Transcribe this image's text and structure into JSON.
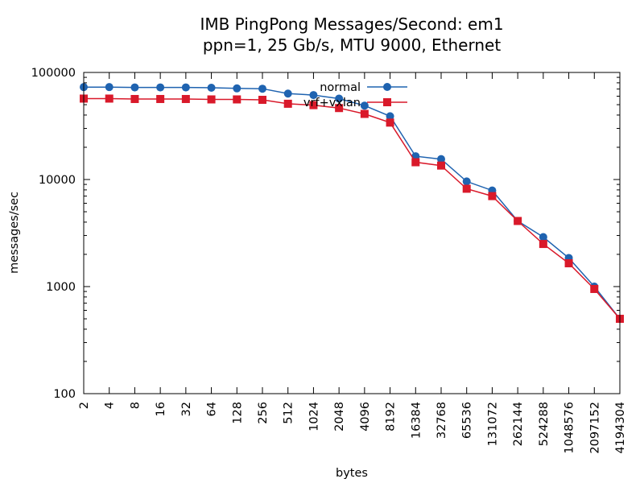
{
  "chart_data": {
    "type": "line",
    "title": "IMB PingPong Messages/Second: em1",
    "subtitle": "ppn=1, 25 Gb/s, MTU 9000, Ethernet",
    "xlabel": "bytes",
    "ylabel": "messages/sec",
    "xscale": "log2",
    "yscale": "log10",
    "xlim": [
      2,
      4194304
    ],
    "ylim": [
      100,
      100000
    ],
    "grid": false,
    "legend_position": "top-right",
    "x": [
      2,
      4,
      8,
      16,
      32,
      64,
      128,
      256,
      512,
      1024,
      2048,
      4096,
      8192,
      16384,
      32768,
      65536,
      131072,
      262144,
      524288,
      1048576,
      2097152,
      4194304
    ],
    "x_tick_labels": [
      "2",
      "4",
      "8",
      "16",
      "32",
      "64",
      "128",
      "256",
      "512",
      "1024",
      "2048",
      "4096",
      "8192",
      "16384",
      "32768",
      "65536",
      "131072",
      "262144",
      "524288",
      "1048576",
      "2097152",
      "4194304"
    ],
    "y_tick_labels": [
      "100",
      "1000",
      "10000",
      "100000"
    ],
    "y_ticks": [
      100,
      1000,
      10000,
      100000
    ],
    "series": [
      {
        "name": "normal",
        "color": "#1f63b0",
        "marker": "circle",
        "values": [
          73000,
          73000,
          72500,
          72500,
          72500,
          72000,
          71000,
          70500,
          63500,
          61500,
          57000,
          49000,
          39000,
          16500,
          15500,
          9600,
          7900,
          4100,
          2900,
          1850,
          1000,
          500
        ]
      },
      {
        "name": "vrf+vxlan",
        "color": "#d9192a",
        "marker": "square",
        "values": [
          57000,
          57000,
          56500,
          56500,
          56500,
          56000,
          56000,
          55500,
          51000,
          49500,
          46500,
          41000,
          34000,
          14500,
          13500,
          8200,
          7000,
          4100,
          2500,
          1650,
          950,
          500
        ]
      }
    ]
  }
}
